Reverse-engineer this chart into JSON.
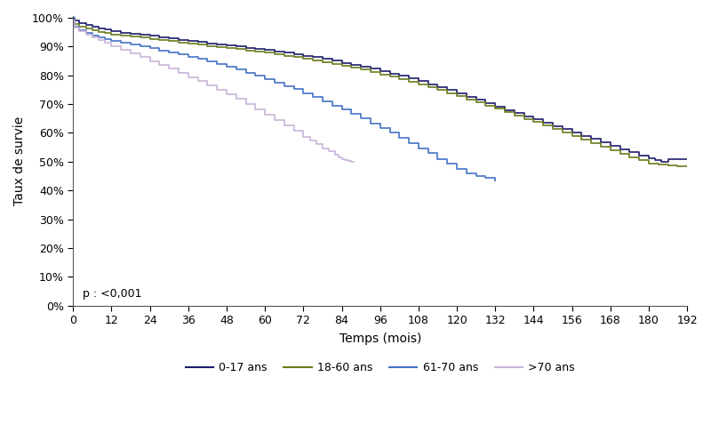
{
  "xlabel": "Temps (mois)",
  "ylabel": "Taux de survie",
  "p_label": "p : <0,001",
  "xlim": [
    0,
    192
  ],
  "ylim": [
    0,
    1.005
  ],
  "xticks": [
    0,
    12,
    24,
    36,
    48,
    60,
    72,
    84,
    96,
    108,
    120,
    132,
    144,
    156,
    168,
    180,
    192
  ],
  "yticks": [
    0.0,
    0.1,
    0.2,
    0.3,
    0.4,
    0.5,
    0.6,
    0.7,
    0.8,
    0.9,
    1.0
  ],
  "legend_labels": [
    "0-17 ans",
    "18-60 ans",
    "61-70 ans",
    ">70 ans"
  ],
  "colors": {
    "0-17": "#1c1c6b",
    "18-60": "#6b7a1a",
    "61-70": "#4472c4",
    ">70": "#c8b4d8"
  },
  "curves": {
    "0-17": {
      "t": [
        0,
        0.5,
        2,
        4,
        6,
        8,
        10,
        12,
        15,
        18,
        21,
        24,
        27,
        30,
        33,
        36,
        39,
        42,
        45,
        48,
        51,
        54,
        57,
        60,
        63,
        66,
        69,
        72,
        75,
        78,
        81,
        84,
        87,
        90,
        93,
        96,
        99,
        102,
        105,
        108,
        111,
        114,
        117,
        120,
        123,
        126,
        129,
        132,
        135,
        138,
        141,
        144,
        147,
        150,
        153,
        156,
        159,
        162,
        165,
        168,
        171,
        174,
        177,
        180,
        182,
        184,
        186,
        188,
        190,
        192
      ],
      "s": [
        1.0,
        0.99,
        0.982,
        0.975,
        0.968,
        0.963,
        0.958,
        0.953,
        0.948,
        0.944,
        0.94,
        0.936,
        0.931,
        0.927,
        0.923,
        0.919,
        0.915,
        0.911,
        0.907,
        0.903,
        0.899,
        0.895,
        0.891,
        0.887,
        0.882,
        0.878,
        0.873,
        0.868,
        0.862,
        0.856,
        0.85,
        0.843,
        0.836,
        0.829,
        0.822,
        0.814,
        0.806,
        0.798,
        0.789,
        0.779,
        0.769,
        0.759,
        0.748,
        0.737,
        0.725,
        0.714,
        0.702,
        0.691,
        0.679,
        0.668,
        0.657,
        0.646,
        0.635,
        0.624,
        0.613,
        0.601,
        0.59,
        0.578,
        0.567,
        0.556,
        0.544,
        0.533,
        0.522,
        0.511,
        0.505,
        0.5,
        0.51,
        0.51,
        0.51,
        0.51
      ]
    },
    "18-60": {
      "t": [
        0,
        0.5,
        2,
        4,
        6,
        8,
        10,
        12,
        15,
        18,
        21,
        24,
        27,
        30,
        33,
        36,
        39,
        42,
        45,
        48,
        51,
        54,
        57,
        60,
        63,
        66,
        69,
        72,
        75,
        78,
        81,
        84,
        87,
        90,
        93,
        96,
        99,
        102,
        105,
        108,
        111,
        114,
        117,
        120,
        123,
        126,
        129,
        132,
        135,
        138,
        141,
        144,
        147,
        150,
        153,
        156,
        159,
        162,
        165,
        168,
        171,
        174,
        177,
        180,
        183,
        186,
        189,
        192
      ],
      "s": [
        1.0,
        0.978,
        0.968,
        0.961,
        0.955,
        0.95,
        0.946,
        0.942,
        0.938,
        0.934,
        0.93,
        0.926,
        0.922,
        0.918,
        0.914,
        0.91,
        0.906,
        0.902,
        0.898,
        0.894,
        0.89,
        0.886,
        0.882,
        0.878,
        0.873,
        0.868,
        0.863,
        0.858,
        0.852,
        0.846,
        0.84,
        0.833,
        0.826,
        0.819,
        0.811,
        0.803,
        0.795,
        0.786,
        0.777,
        0.768,
        0.758,
        0.748,
        0.738,
        0.727,
        0.716,
        0.705,
        0.694,
        0.683,
        0.671,
        0.66,
        0.648,
        0.637,
        0.625,
        0.613,
        0.601,
        0.589,
        0.577,
        0.565,
        0.553,
        0.54,
        0.528,
        0.516,
        0.504,
        0.492,
        0.49,
        0.488,
        0.485,
        0.48
      ]
    },
    "61-70": {
      "t": [
        0,
        0.5,
        2,
        4,
        6,
        8,
        10,
        12,
        15,
        18,
        21,
        24,
        27,
        30,
        33,
        36,
        39,
        42,
        45,
        48,
        51,
        54,
        57,
        60,
        63,
        66,
        69,
        72,
        75,
        78,
        81,
        84,
        87,
        90,
        93,
        96,
        99,
        102,
        105,
        108,
        111,
        114,
        117,
        120,
        123,
        126,
        129,
        132
      ],
      "s": [
        1.0,
        0.968,
        0.956,
        0.947,
        0.939,
        0.932,
        0.926,
        0.92,
        0.913,
        0.907,
        0.9,
        0.893,
        0.886,
        0.879,
        0.872,
        0.864,
        0.856,
        0.847,
        0.838,
        0.829,
        0.819,
        0.809,
        0.798,
        0.787,
        0.775,
        0.763,
        0.751,
        0.738,
        0.724,
        0.71,
        0.695,
        0.68,
        0.665,
        0.649,
        0.633,
        0.617,
        0.6,
        0.583,
        0.565,
        0.547,
        0.529,
        0.51,
        0.493,
        0.475,
        0.458,
        0.45,
        0.443,
        0.43
      ]
    },
    ">70": {
      "t": [
        0,
        0.5,
        2,
        4,
        6,
        8,
        10,
        12,
        15,
        18,
        21,
        24,
        27,
        30,
        33,
        36,
        39,
        42,
        45,
        48,
        51,
        54,
        57,
        60,
        63,
        66,
        69,
        72,
        74,
        76,
        78,
        80,
        82,
        83,
        84,
        85,
        86,
        87,
        88
      ],
      "s": [
        0.99,
        0.965,
        0.952,
        0.942,
        0.932,
        0.922,
        0.912,
        0.901,
        0.889,
        0.876,
        0.863,
        0.849,
        0.836,
        0.822,
        0.808,
        0.793,
        0.779,
        0.764,
        0.749,
        0.733,
        0.717,
        0.7,
        0.682,
        0.664,
        0.645,
        0.626,
        0.606,
        0.585,
        0.572,
        0.56,
        0.547,
        0.535,
        0.523,
        0.515,
        0.51,
        0.505,
        0.502,
        0.5,
        0.498
      ]
    }
  }
}
